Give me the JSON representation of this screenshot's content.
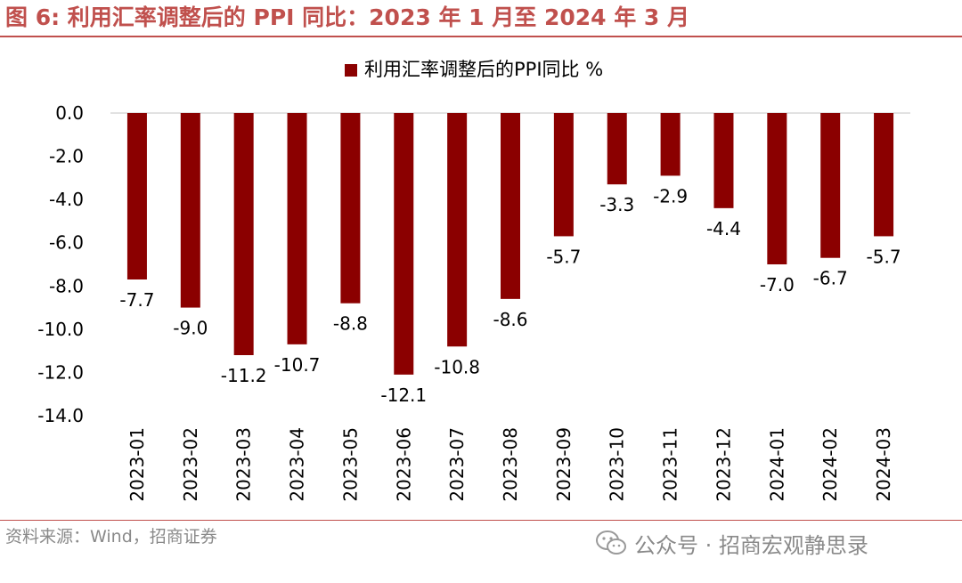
{
  "figure_title": "图 6:  利用汇率调整后的 PPI 同比：2023 年 1 月至 2024 年 3 月",
  "source": "资料来源：Wind，招商证券",
  "watermark": "公众号 · 招商宏观静思录",
  "colors": {
    "accent": "#C0504D",
    "bar": "#8B0000",
    "text": "#000000",
    "axis": "#d9d9d9",
    "muted": "#8a8a8a"
  },
  "chart_data": {
    "type": "bar",
    "title": "",
    "xlabel": "",
    "ylabel": "",
    "ylim": [
      -14.0,
      0.0
    ],
    "yticks": [
      0.0,
      -2.0,
      -4.0,
      -6.0,
      -8.0,
      -10.0,
      -12.0,
      -14.0
    ],
    "ytick_labels": [
      "0.0",
      "-2.0",
      "-4.0",
      "-6.0",
      "-8.0",
      "-10.0",
      "-12.0",
      "-14.0"
    ],
    "grid": false,
    "legend": "top-center",
    "categories": [
      "2023-01",
      "2023-02",
      "2023-03",
      "2023-04",
      "2023-05",
      "2023-06",
      "2023-07",
      "2023-08",
      "2023-09",
      "2023-10",
      "2023-11",
      "2023-12",
      "2024-01",
      "2024-02",
      "2024-03"
    ],
    "series": [
      {
        "name": "利用汇率调整后的PPI同比 %",
        "values": [
          -7.7,
          -9.0,
          -11.2,
          -10.7,
          -8.8,
          -12.1,
          -10.8,
          -8.6,
          -5.7,
          -3.3,
          -2.9,
          -4.4,
          -7.0,
          -6.7,
          -5.7
        ],
        "labels": [
          "-7.7",
          "-9.0",
          "-11.2",
          "-10.7",
          "-8.8",
          "-12.1",
          "-10.8",
          "-8.6",
          "-5.7",
          "-3.3",
          "-2.9",
          "-4.4",
          "-7.0",
          "-6.7",
          "-5.7"
        ]
      }
    ]
  }
}
